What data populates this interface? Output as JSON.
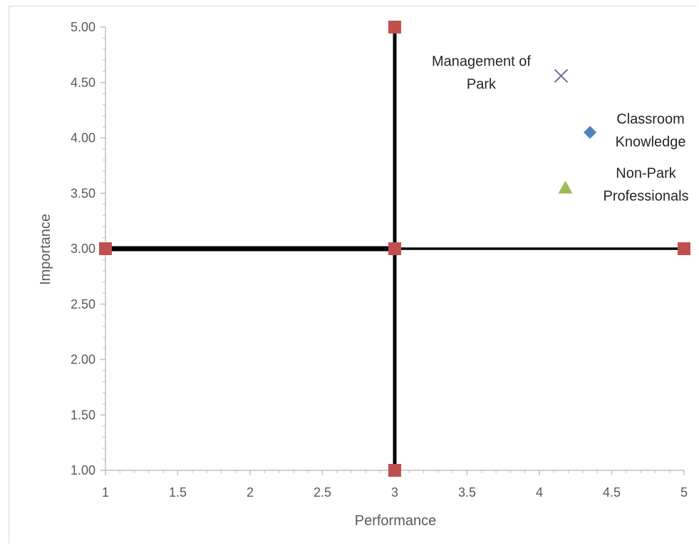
{
  "chart_data": {
    "type": "scatter",
    "xlabel": "Performance",
    "ylabel": "Importance",
    "xlim": [
      1,
      5
    ],
    "ylim": [
      1,
      5
    ],
    "x_ticks": [
      "1",
      "1.5",
      "2",
      "2.5",
      "3",
      "3.5",
      "4",
      "4.5",
      "5"
    ],
    "y_ticks": [
      "1.00",
      "1.50",
      "2.00",
      "2.50",
      "3.00",
      "3.50",
      "4.00",
      "4.50",
      "5.00"
    ],
    "grid": false,
    "legend": "none",
    "quadrant_lines": {
      "color": "#000000",
      "marker_color": "#c0504d",
      "horizontal": [
        {
          "x": 1,
          "y": 3
        },
        {
          "x": 3,
          "y": 3
        },
        {
          "x": 5,
          "y": 3
        }
      ],
      "vertical": [
        {
          "x": 3,
          "y": 1
        },
        {
          "x": 3,
          "y": 3
        },
        {
          "x": 3,
          "y": 5
        }
      ]
    },
    "series": [
      {
        "label_lines": [
          "Classroom",
          "Knowledge"
        ],
        "x": 4.35,
        "y": 4.05,
        "marker": "diamond",
        "color": "#4f81bd"
      },
      {
        "label_lines": [
          "Non-Park",
          "Professionals"
        ],
        "x": 4.18,
        "y": 3.55,
        "marker": "triangle",
        "color": "#9bbb59"
      },
      {
        "label_lines": [
          "Management of",
          "Park"
        ],
        "x": 4.15,
        "y": 4.56,
        "marker": "x",
        "color": "#8064a2"
      }
    ]
  }
}
